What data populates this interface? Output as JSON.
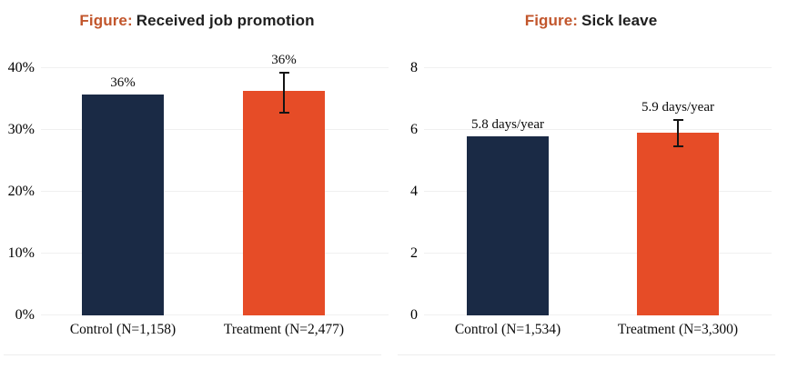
{
  "colors": {
    "control_bar": "#1a2a45",
    "treatment_bar": "#e64c27",
    "title_accent": "#c2562c",
    "title_text": "#1f1f1f",
    "gridline": "#f0f0f0",
    "axis_text": "#000000",
    "error_bar": "#141414",
    "divider": "#ededed",
    "background": "#ffffff"
  },
  "chart_data": [
    {
      "type": "bar",
      "title_accent": "Figure:",
      "title": "Received job promotion",
      "categories": [
        "Control (N=1,158)",
        "Treatment (N=2,477)"
      ],
      "values": [
        35.7,
        36.3
      ],
      "data_labels": [
        "36%",
        "36%"
      ],
      "series_colors": [
        "#1a2a45",
        "#e64c27"
      ],
      "error_bars": [
        null,
        {
          "low": 32.6,
          "high": 39.4
        }
      ],
      "ylim": [
        0,
        40
      ],
      "yticks": [
        0,
        10,
        20,
        30,
        40
      ],
      "ytick_labels": [
        "0%",
        "10%",
        "20%",
        "30%",
        "40%"
      ],
      "xlabel": "",
      "ylabel": "",
      "grid": true,
      "legend": false
    },
    {
      "type": "bar",
      "title_accent": "Figure:",
      "title": "Sick leave",
      "categories": [
        "Control (N=1,534)",
        "Treatment (N=3,300)"
      ],
      "values": [
        5.8,
        5.9
      ],
      "data_labels": [
        "5.8 days/year",
        "5.9 days/year"
      ],
      "series_colors": [
        "#1a2a45",
        "#e64c27"
      ],
      "error_bars": [
        null,
        {
          "low": 5.45,
          "high": 6.35
        }
      ],
      "ylim": [
        0,
        8
      ],
      "yticks": [
        0,
        2,
        4,
        6,
        8
      ],
      "ytick_labels": [
        "0",
        "2",
        "4",
        "6",
        "8"
      ],
      "xlabel": "",
      "ylabel": "",
      "grid": true,
      "legend": false
    }
  ]
}
